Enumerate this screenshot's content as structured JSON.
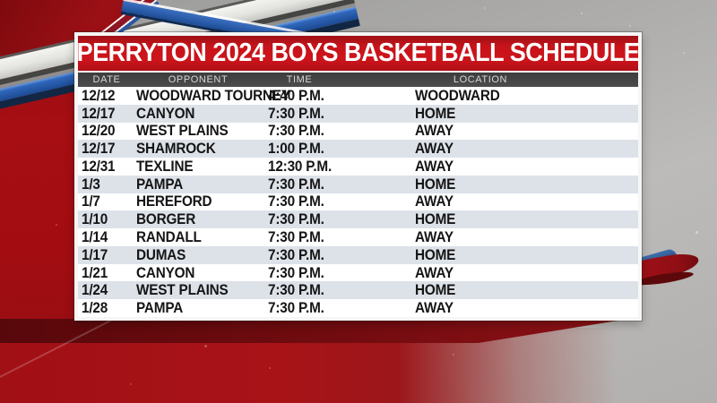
{
  "panel": {
    "title": "PERRYTON 2024 BOYS BASKETBALL SCHEDULE",
    "columns": [
      {
        "label": "DATE"
      },
      {
        "label": "OPPONENT"
      },
      {
        "label": "TIME"
      },
      {
        "label": "LOCATION"
      }
    ],
    "rows": [
      {
        "date": "12/12",
        "opponent": "WOODWARD TOURNEY",
        "time": "4:40 P.M.",
        "location": "WOODWARD"
      },
      {
        "date": "12/17",
        "opponent": "CANYON",
        "time": "7:30 P.M.",
        "location": "HOME"
      },
      {
        "date": "12/20",
        "opponent": "WEST PLAINS",
        "time": "7:30 P.M.",
        "location": "AWAY"
      },
      {
        "date": "12/17",
        "opponent": "SHAMROCK",
        "time": "1:00 P.M.",
        "location": "AWAY"
      },
      {
        "date": "12/31",
        "opponent": "TEXLINE",
        "time": "12:30 P.M.",
        "location": "AWAY"
      },
      {
        "date": "1/3",
        "opponent": "PAMPA",
        "time": "7:30 P.M.",
        "location": "HOME"
      },
      {
        "date": "1/7",
        "opponent": "HEREFORD",
        "time": "7:30 P.M.",
        "location": "AWAY"
      },
      {
        "date": "1/10",
        "opponent": "BORGER",
        "time": "7:30 P.M.",
        "location": "HOME"
      },
      {
        "date": "1/14",
        "opponent": "RANDALL",
        "time": "7:30 P.M.",
        "location": "AWAY"
      },
      {
        "date": "1/17",
        "opponent": "DUMAS",
        "time": "7:30 P.M.",
        "location": "HOME"
      },
      {
        "date": "1/21",
        "opponent": "CANYON",
        "time": "7:30 P.M.",
        "location": "AWAY"
      },
      {
        "date": "1/24",
        "opponent": "WEST PLAINS",
        "time": "7:30 P.M.",
        "location": "HOME"
      },
      {
        "date": "1/28",
        "opponent": "PAMPA",
        "time": "7:30 P.M.",
        "location": "AWAY"
      }
    ]
  },
  "colors": {
    "title_bar_red": "#c8131a",
    "column_header_gray": "#454545",
    "row_alt_tint": "#dde2e9",
    "row_text": "#151515",
    "background_red": "#a30d12",
    "background_gray": "#b0afad",
    "stripe_blue": "#2c64b8",
    "stripe_silver": "#e9e9e5",
    "stripe_navy": "#122743",
    "ribbon_dark_red": "#5c090c"
  }
}
